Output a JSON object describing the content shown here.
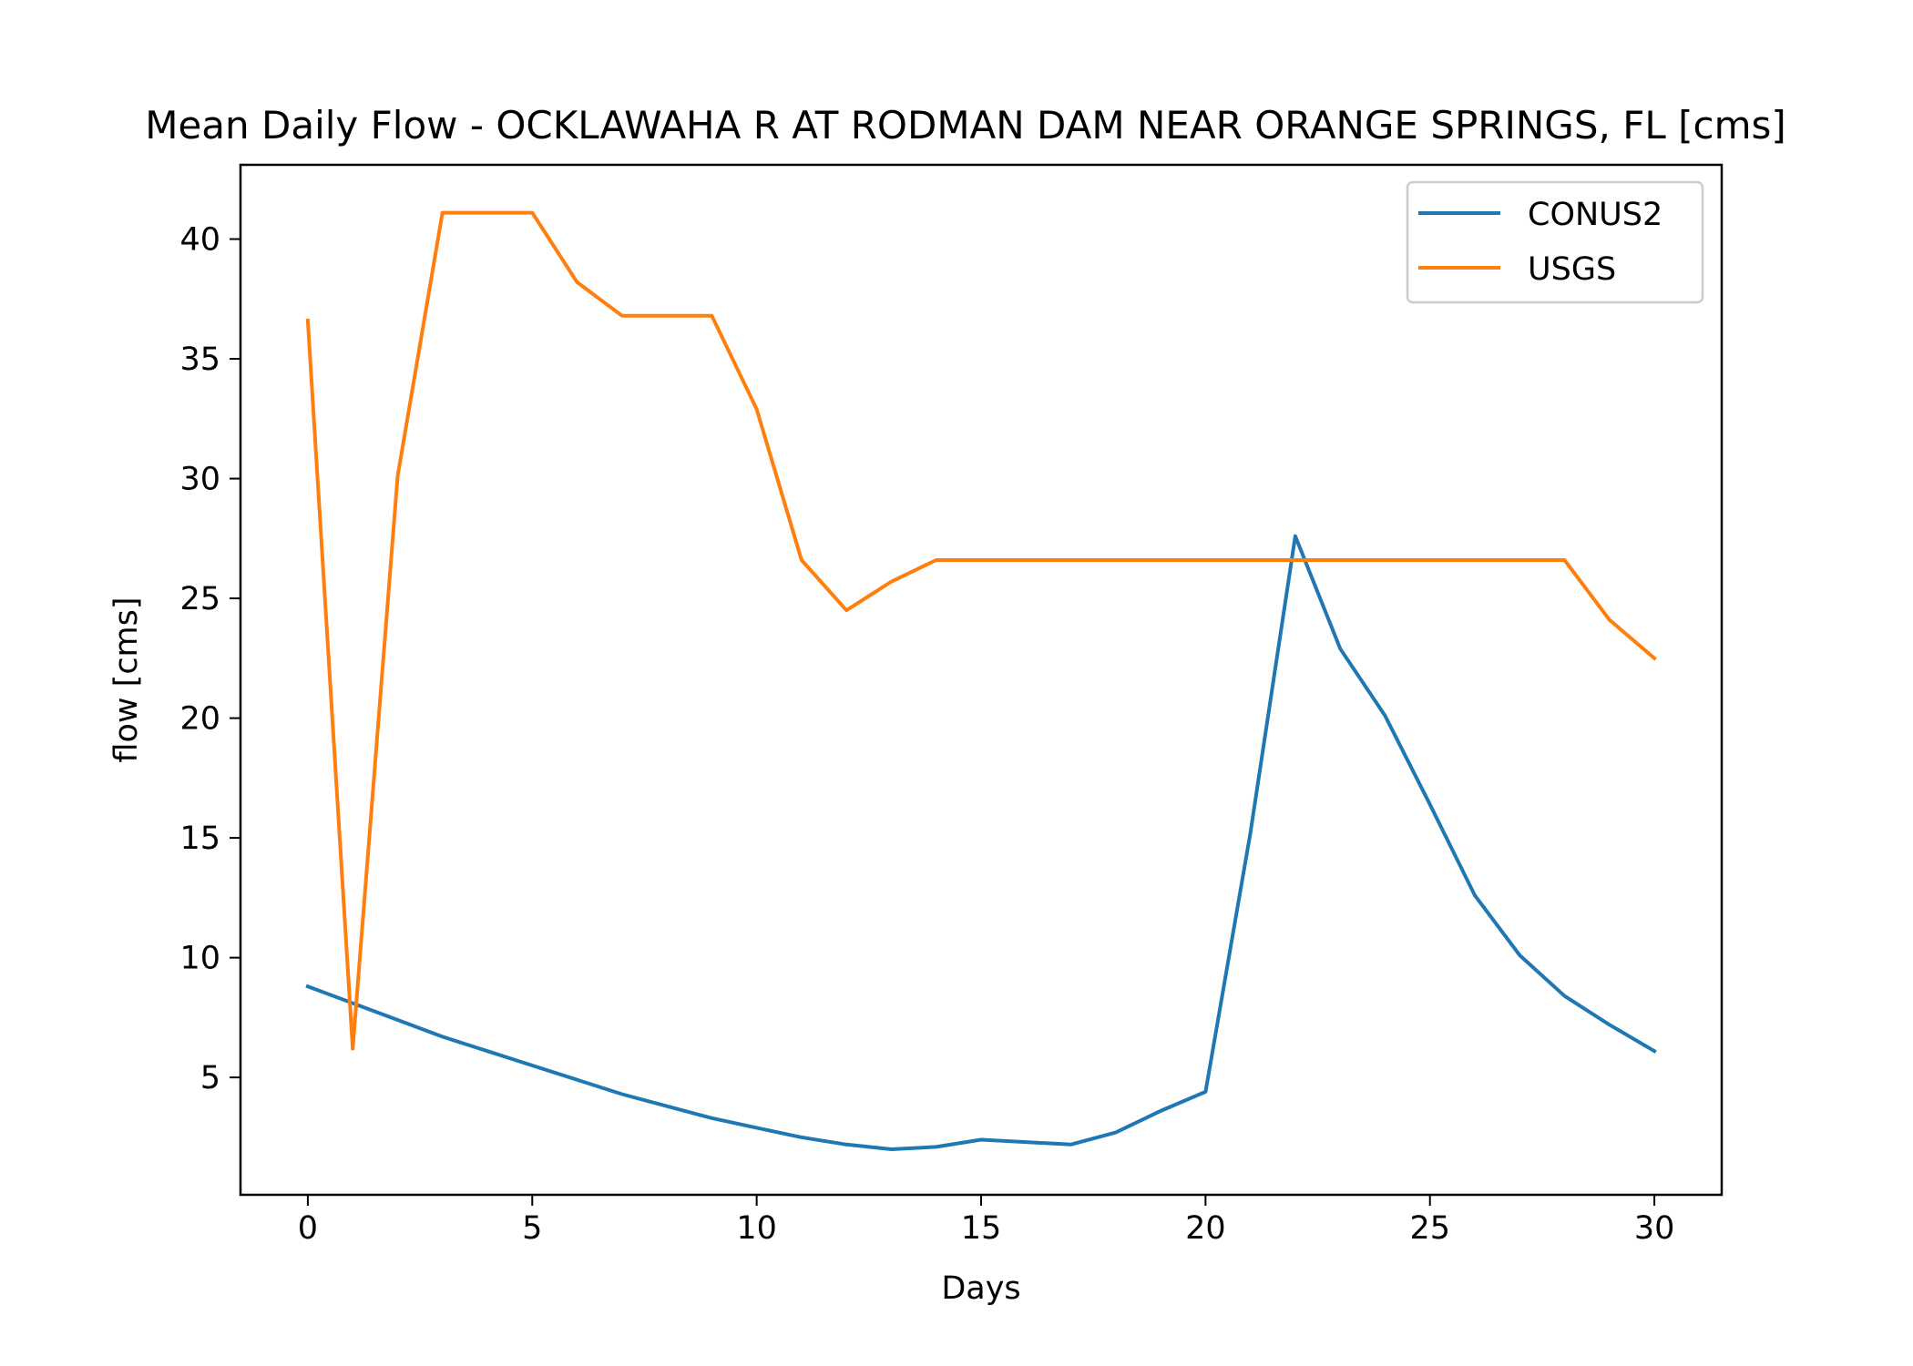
{
  "chart_data": {
    "type": "line",
    "title": "Mean Daily Flow - OCKLAWAHA R AT RODMAN DAM NEAR ORANGE SPRINGS, FL [cms]",
    "xlabel": "Days",
    "ylabel": "flow [cms]",
    "xlim": [
      -1.5,
      31.5
    ],
    "ylim": [
      0.1,
      43.1
    ],
    "xticks": [
      0,
      5,
      10,
      15,
      20,
      25,
      30
    ],
    "yticks": [
      5,
      10,
      15,
      20,
      25,
      30,
      35,
      40
    ],
    "grid": false,
    "legend_position": "top-right",
    "x": [
      0,
      1,
      2,
      3,
      4,
      5,
      6,
      7,
      8,
      9,
      10,
      11,
      12,
      13,
      14,
      15,
      16,
      17,
      18,
      19,
      20,
      21,
      22,
      23,
      24,
      25,
      26,
      27,
      28,
      29,
      30
    ],
    "series": [
      {
        "name": "CONUS2",
        "color": "#1f77b4",
        "values": [
          8.8,
          8.1,
          7.4,
          6.7,
          6.1,
          5.5,
          4.9,
          4.3,
          3.8,
          3.3,
          2.9,
          2.5,
          2.2,
          2.0,
          2.1,
          2.4,
          2.3,
          2.2,
          2.7,
          3.6,
          4.4,
          15.2,
          27.6,
          22.9,
          20.1,
          16.4,
          12.6,
          10.1,
          8.4,
          7.2,
          6.1
        ]
      },
      {
        "name": "USGS",
        "color": "#ff7f0e",
        "values": [
          36.6,
          6.2,
          30.1,
          41.1,
          41.1,
          41.1,
          38.2,
          36.8,
          36.8,
          36.8,
          32.9,
          26.6,
          24.5,
          25.7,
          26.6,
          26.6,
          26.6,
          26.6,
          26.6,
          26.6,
          26.6,
          26.6,
          26.6,
          26.6,
          26.6,
          26.6,
          26.6,
          26.6,
          26.6,
          24.1,
          22.5
        ]
      }
    ]
  }
}
